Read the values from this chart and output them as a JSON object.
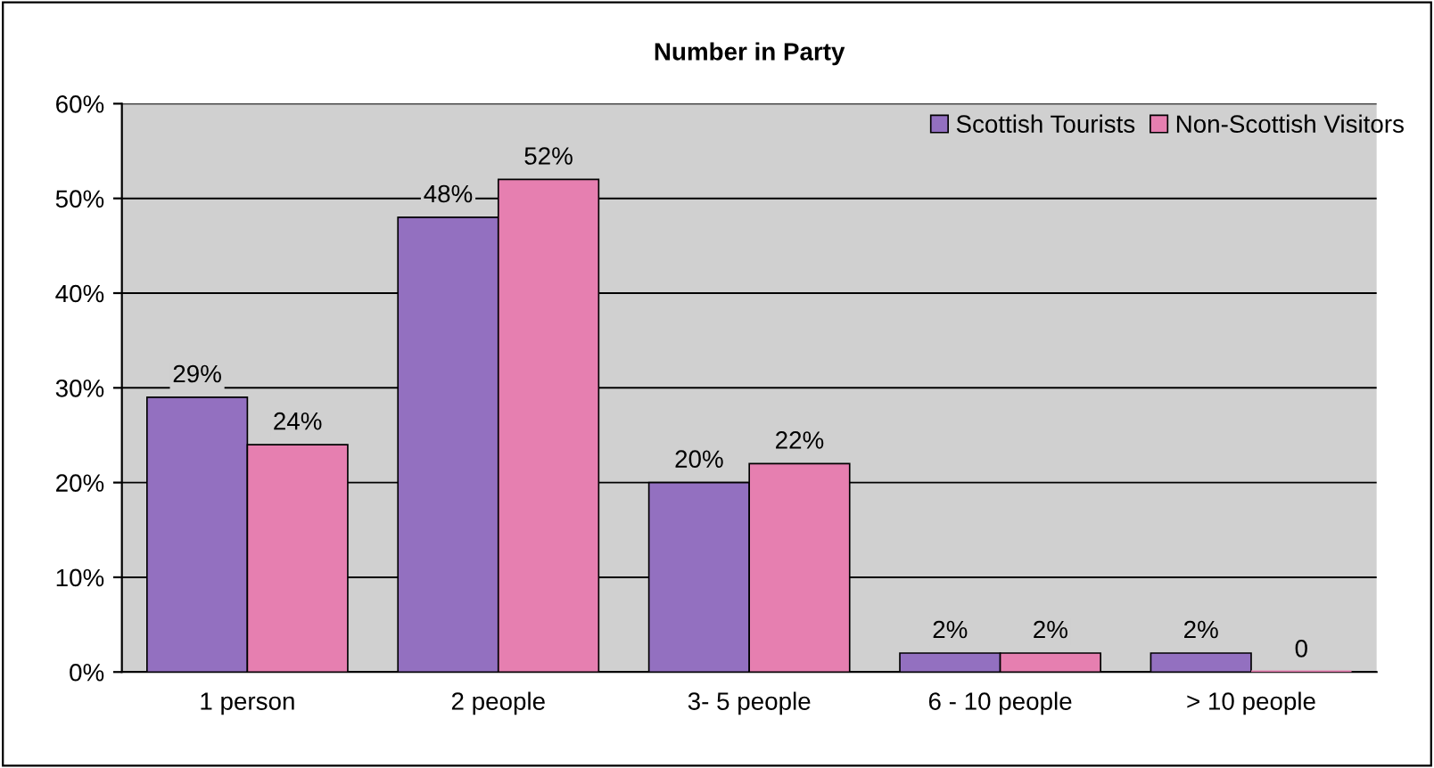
{
  "chart_data": {
    "type": "bar",
    "title": "Number in Party",
    "categories": [
      "1 person",
      "2 people",
      "3- 5 people",
      "6 - 10 people",
      "> 10 people"
    ],
    "series": [
      {
        "name": "Scottish Tourists",
        "color": "#9370c0",
        "values": [
          29,
          48,
          20,
          2,
          2
        ],
        "value_labels": [
          "29%",
          "48%",
          "20%",
          "2%",
          "2%"
        ]
      },
      {
        "name": "Non-Scottish Visitors",
        "color": "#e67fb0",
        "values": [
          24,
          52,
          22,
          2,
          0
        ],
        "value_labels": [
          "24%",
          "52%",
          "22%",
          "2%",
          "0"
        ]
      }
    ],
    "ylim": [
      0,
      60
    ],
    "yticks": [
      {
        "value": 0,
        "label": "0%"
      },
      {
        "value": 10,
        "label": "10%"
      },
      {
        "value": 20,
        "label": "20%"
      },
      {
        "value": 30,
        "label": "30%"
      },
      {
        "value": 40,
        "label": "40%"
      },
      {
        "value": 50,
        "label": "50%"
      },
      {
        "value": 60,
        "label": "60%"
      }
    ],
    "grid": "y",
    "legend": "top right"
  }
}
